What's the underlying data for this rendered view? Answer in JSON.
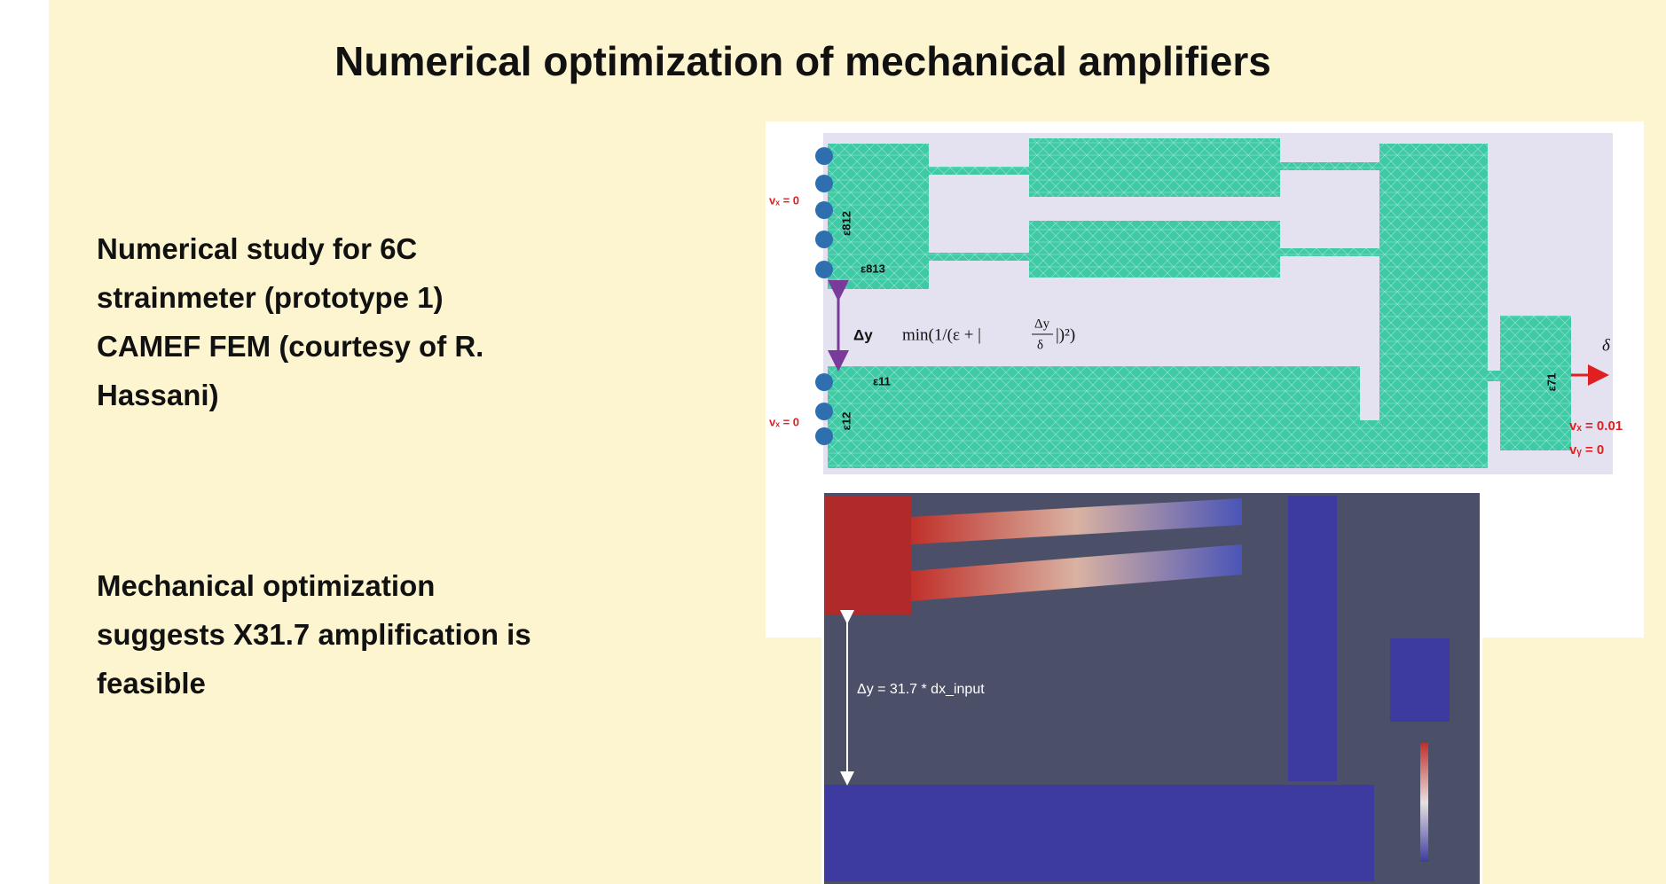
{
  "title": "Numerical optimization of mechanical amplifiers",
  "bullets": [
    {
      "lines": [
        "Numerical study for 6C",
        "strainmeter (prototype 1)",
        "CAMEF FEM (courtesy of R.",
        "Hassani)"
      ]
    },
    {
      "lines": [
        "Mechanical optimization",
        "suggests X31.7 amplification is",
        "feasible"
      ]
    }
  ],
  "mesh_figure": {
    "bc_left_top": "vₓ = 0",
    "bc_left_bottom": "vₓ = 0",
    "gauge_812": "ε812",
    "gauge_813": "ε813",
    "gauge_11": "ε11",
    "gauge_12": "ε12",
    "gauge_71": "ε71",
    "delta_y": "Δy",
    "objective": {
      "prefix": "min(1/(ε + |",
      "numerator": "Δy",
      "denominator": "δ",
      "suffix": "|)²)"
    },
    "output": "δ",
    "bc_right_x": "vₓ = 0.01",
    "bc_right_y": "vᵧ = 0"
  },
  "result_figure": {
    "annotation": "Δy = 31.7 * dx_input"
  }
}
